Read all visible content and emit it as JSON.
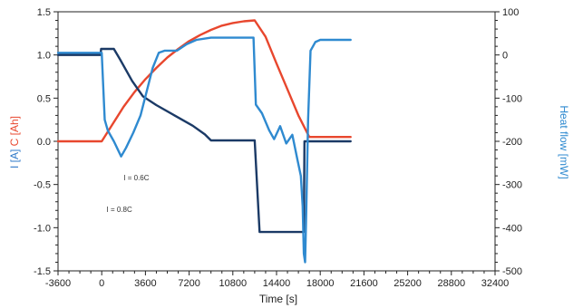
{
  "chart_data": {
    "type": "line",
    "title": "",
    "xlabel": "Time [s]",
    "ylabel_left_parts": [
      {
        "text": "I [A]",
        "color": "#2e78c8"
      },
      {
        "text": " C [Ah]",
        "color": "#e8472e"
      }
    ],
    "ylabel_right": "Heat flow [mW]",
    "xlim": [
      -3600,
      32400
    ],
    "ylim_left": [
      -1.5,
      1.5
    ],
    "ylim_right": [
      -500,
      100
    ],
    "x_ticks": [
      -3600,
      0,
      3600,
      7200,
      10800,
      14400,
      18000,
      21600,
      25200,
      28800,
      32400
    ],
    "y_left_ticks": [
      "1.5",
      "1.0",
      "0.5",
      "0.0",
      "-0.5",
      "-1.0",
      "-1.5"
    ],
    "y_right_ticks": [
      "100",
      "0",
      "-100",
      "-200",
      "-300",
      "-400",
      "-500"
    ],
    "grid": false,
    "annotations": [
      {
        "text": "I = 0.6C",
        "x": 1800,
        "y": -0.45
      },
      {
        "text": "I = 0.8C",
        "x": 400,
        "y": -0.82
      }
    ],
    "series": [
      {
        "axis": "left",
        "color": "#e8472e",
        "x": [
          -3600,
          0,
          900,
          1800,
          2700,
          3600,
          4500,
          5400,
          6300,
          7200,
          8100,
          9000,
          9900,
          10800,
          11700,
          12600,
          13500,
          14400,
          15300,
          16200,
          17100,
          18000,
          19000,
          20500
        ],
        "y": [
          0.0,
          0.0,
          0.2,
          0.4,
          0.57,
          0.72,
          0.85,
          0.97,
          1.07,
          1.16,
          1.23,
          1.29,
          1.34,
          1.37,
          1.39,
          1.4,
          1.21,
          0.9,
          0.6,
          0.3,
          0.05,
          0.05,
          0.05,
          0.05
        ]
      },
      {
        "axis": "left",
        "color": "#1b3a66",
        "x": [
          -3600,
          -100,
          -50,
          0,
          1000,
          1500,
          2500,
          3400,
          4500,
          6000,
          7500,
          8500,
          9000,
          10500,
          12100,
          12600,
          13000,
          14400,
          16200,
          16650,
          16700,
          17000,
          18000,
          20500
        ],
        "y": [
          1.0,
          1.0,
          1.07,
          1.07,
          1.07,
          0.95,
          0.7,
          0.52,
          0.42,
          0.3,
          0.18,
          0.08,
          0.01,
          0.01,
          0.01,
          0.01,
          -1.05,
          -1.05,
          -1.05,
          -1.05,
          0.0,
          0.0,
          0.0,
          0.0
        ]
      },
      {
        "axis": "right",
        "color": "#2f8ad0",
        "x": [
          -3600,
          -200,
          0,
          250,
          500,
          1000,
          1600,
          2000,
          2600,
          3200,
          3700,
          4200,
          4700,
          5200,
          6200,
          7000,
          7800,
          9000,
          10500,
          11500,
          12000,
          12500,
          12700,
          13200,
          13800,
          14200,
          14700,
          15200,
          15700,
          16100,
          16400,
          16550,
          16650,
          16750,
          16850,
          17000,
          17200,
          17600,
          18000,
          19000,
          20500
        ],
        "y": [
          5,
          5,
          5,
          -150,
          -175,
          -200,
          -235,
          -215,
          -180,
          -140,
          -85,
          -30,
          5,
          10,
          10,
          25,
          35,
          40,
          40,
          40,
          40,
          40,
          -115,
          -135,
          -175,
          -195,
          -165,
          -205,
          -185,
          -240,
          -280,
          -350,
          -460,
          -480,
          -360,
          -150,
          10,
          30,
          35,
          35,
          35
        ]
      }
    ]
  }
}
